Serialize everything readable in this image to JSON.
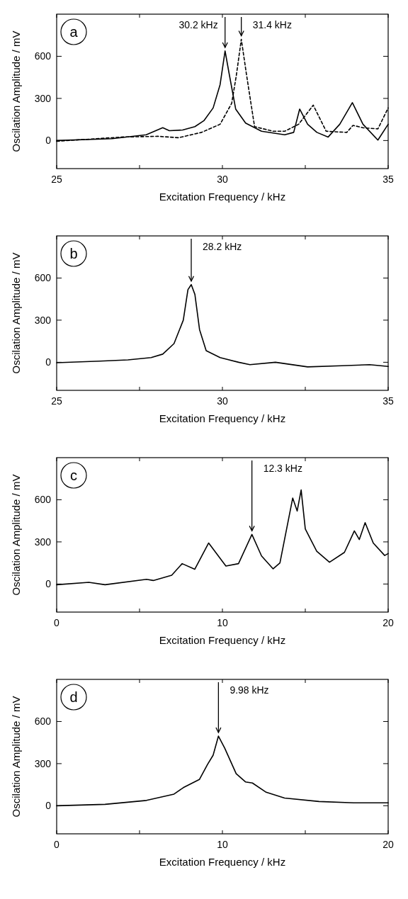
{
  "chart_data": [
    {
      "type": "line",
      "title": "a",
      "xlabel": "Excitation Frequency / kHz",
      "ylabel": "Oscilation Amplitude / mV",
      "xlim": [
        25,
        35
      ],
      "xticks": [
        25,
        {
          "value": 27.5,
          "label": null
        },
        30,
        {
          "value": 32.5,
          "label": null
        },
        35
      ],
      "ylim": [
        -200,
        900
      ],
      "yticks": [
        0,
        300,
        600
      ],
      "series": [
        {
          "color": "#000000",
          "line_style": "solid",
          "x": [
            25,
            26.67,
            27.7,
            28.2,
            28.4,
            28.8,
            29.17,
            29.44,
            29.72,
            29.93,
            30.08,
            30.2,
            30.4,
            30.7,
            31.18,
            31.88,
            32.15,
            32.33,
            32.57,
            32.85,
            33.19,
            33.54,
            33.92,
            34.24,
            34.69,
            35
          ],
          "values": [
            0,
            13,
            41,
            91,
            70,
            75,
            99,
            141,
            232,
            398,
            638,
            480,
            224,
            124,
            66,
            41,
            58,
            224,
            116,
            58,
            25,
            116,
            270,
            116,
            3,
            116
          ]
        },
        {
          "color": "#000000",
          "line_style": "dashed",
          "x": [
            25,
            27.0,
            28.06,
            28.68,
            29.37,
            29.93,
            30.28,
            30.42,
            30.57,
            30.73,
            30.97,
            31.53,
            31.88,
            32.3,
            32.74,
            33.13,
            33.75,
            33.94,
            34.24,
            34.69,
            35
          ],
          "values": [
            -5,
            25,
            30,
            20,
            58,
            116,
            265,
            464,
            721,
            464,
            99,
            66,
            66,
            116,
            252,
            66,
            58,
            108,
            91,
            83,
            232
          ]
        }
      ],
      "annotations": [
        {
          "text": "30.2 kHz",
          "x": 30.08,
          "y": 638
        },
        {
          "text": "31.4 kHz",
          "x": 30.57,
          "y": 721
        }
      ]
    },
    {
      "type": "line",
      "title": "b",
      "xlabel": "Excitation Frequency / kHz",
      "ylabel": "Oscilation Amplitude / mV",
      "xlim": [
        25,
        35
      ],
      "xticks": [
        25,
        {
          "value": 27.5,
          "label": null
        },
        30,
        {
          "value": 32.5,
          "label": null
        },
        35
      ],
      "ylim": [
        -200,
        900
      ],
      "yticks": [
        0,
        300,
        600
      ],
      "series": [
        {
          "color": "#000000",
          "line_style": "solid",
          "x": [
            25,
            26.3,
            27.15,
            27.85,
            28.2,
            28.54,
            28.82,
            28.96,
            29.06,
            29.17,
            29.31,
            29.51,
            29.93,
            30.49,
            30.83,
            31.6,
            32.57,
            33.6,
            34.44,
            35
          ],
          "values": [
            -3,
            8,
            17,
            33,
            58,
            133,
            300,
            517,
            553,
            483,
            233,
            83,
            33,
            0,
            -17,
            0,
            -33,
            -25,
            -17,
            -30
          ]
        }
      ],
      "annotations": [
        {
          "text": "28.2 kHz",
          "x": 29.06,
          "y": 553
        }
      ]
    },
    {
      "type": "line",
      "title": "c",
      "xlabel": "Excitation Frequency / kHz",
      "ylabel": "Oscilation Amplitude / mV",
      "xlim": [
        0,
        20
      ],
      "xticks": [
        0,
        {
          "value": 5,
          "label": null
        },
        10,
        {
          "value": 15,
          "label": null
        },
        20
      ],
      "ylim": [
        -200,
        900
      ],
      "yticks": [
        0,
        300,
        600
      ],
      "series": [
        {
          "color": "#000000",
          "line_style": "solid",
          "x": [
            0,
            1.94,
            2.92,
            5.42,
            5.83,
            6.94,
            7.57,
            8.33,
            9.17,
            10.21,
            10.97,
            11.78,
            12.36,
            13.06,
            13.47,
            14.24,
            14.51,
            14.75,
            15.0,
            15.69,
            16.46,
            17.36,
            17.96,
            18.26,
            18.61,
            19.1,
            19.79,
            20
          ],
          "values": [
            -5,
            12,
            -5,
            33,
            25,
            62,
            145,
            105,
            292,
            128,
            145,
            353,
            200,
            108,
            150,
            612,
            520,
            670,
            392,
            233,
            155,
            225,
            378,
            317,
            437,
            292,
            203,
            217
          ]
        }
      ],
      "annotations": [
        {
          "text": "12.3 kHz",
          "x": 11.78,
          "y": 353
        }
      ]
    },
    {
      "type": "line",
      "title": "d",
      "xlabel": "Excitation Frequency / kHz",
      "ylabel": "Oscilation Amplitude / mV",
      "xlim": [
        0,
        20
      ],
      "xticks": [
        0,
        {
          "value": 5,
          "label": null
        },
        10,
        {
          "value": 15,
          "label": null
        },
        20
      ],
      "ylim": [
        -200,
        900
      ],
      "yticks": [
        0,
        300,
        600
      ],
      "series": [
        {
          "color": "#000000",
          "line_style": "solid",
          "x": [
            0,
            2.92,
            5.42,
            7.08,
            7.64,
            8.61,
            9.1,
            9.44,
            9.76,
            10.14,
            10.83,
            11.39,
            11.81,
            12.64,
            13.75,
            15.83,
            17.92,
            20
          ],
          "values": [
            0,
            10,
            38,
            83,
            129,
            187,
            294,
            360,
            496,
            410,
            228,
            170,
            162,
            96,
            55,
            30,
            21,
            21
          ]
        }
      ],
      "annotations": [
        {
          "text": "9.98 kHz",
          "x": 9.76,
          "y": 496
        }
      ]
    }
  ]
}
